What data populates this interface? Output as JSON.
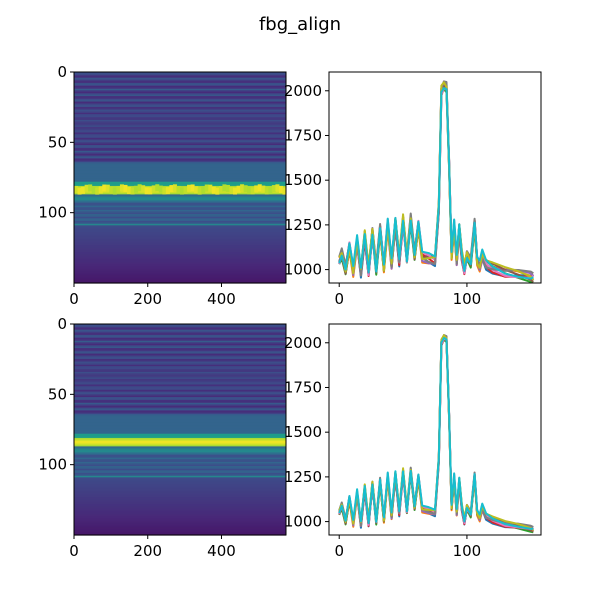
{
  "figure": {
    "title": "fbg_align"
  },
  "chart_data": [
    {
      "type": "heatmap",
      "panel": "top-left",
      "colormap": "viridis",
      "rows": 150,
      "cols": 575,
      "x_ticks": [
        0,
        200,
        400
      ],
      "y_ticks": [
        0,
        50,
        100
      ],
      "xlim": [
        0,
        575
      ],
      "ylim": [
        150,
        0
      ],
      "bright_band_rows": [
        81,
        86
      ]
    },
    {
      "type": "line",
      "panel": "top-right",
      "x_ticks": [
        0,
        100
      ],
      "y_ticks": [
        1000,
        1250,
        1500,
        1750,
        2000
      ],
      "xlim": [
        -8,
        158
      ],
      "ylim": [
        925,
        2105
      ],
      "profile": {
        "x": [
          0,
          2,
          5,
          8,
          11,
          14,
          17,
          20,
          23,
          26,
          29,
          32,
          35,
          38,
          41,
          44,
          47,
          50,
          53,
          56,
          59,
          62,
          65,
          70,
          75,
          78,
          80,
          82,
          84,
          86,
          88,
          90,
          92,
          94,
          96,
          98,
          100,
          103,
          106,
          108,
          110,
          112,
          115,
          120,
          130,
          140,
          150,
          152
        ],
        "y": [
          1050,
          1090,
          1000,
          1130,
          990,
          1160,
          985,
          1190,
          990,
          1210,
          1000,
          1230,
          1010,
          1255,
          1030,
          1265,
          1050,
          1280,
          1060,
          1285,
          1080,
          1250,
          1070,
          1060,
          1050,
          1350,
          2000,
          2030,
          2020,
          1600,
          1080,
          1250,
          1050,
          1230,
          1080,
          1000,
          1080,
          1040,
          1260,
          1050,
          1020,
          1080,
          1030,
          1010,
          985,
          975,
          960,
          955
        ]
      },
      "series_colors": [
        "#1f77b4",
        "#ff7f0e",
        "#2ca02c",
        "#d62728",
        "#9467bd",
        "#8c564b",
        "#e377c2",
        "#7f7f7f",
        "#bcbd22",
        "#17becf"
      ]
    },
    {
      "type": "heatmap",
      "panel": "bottom-left",
      "colormap": "viridis",
      "rows": 150,
      "cols": 575,
      "x_ticks": [
        0,
        200,
        400
      ],
      "y_ticks": [
        0,
        50,
        100
      ],
      "xlim": [
        0,
        575
      ],
      "ylim": [
        150,
        0
      ],
      "bright_band_rows": [
        81,
        86
      ]
    },
    {
      "type": "line",
      "panel": "bottom-right",
      "x_ticks": [
        0,
        100
      ],
      "y_ticks": [
        1000,
        1250,
        1500,
        1750,
        2000
      ],
      "xlim": [
        -8,
        158
      ],
      "ylim": [
        925,
        2105
      ],
      "profile": {
        "x": [
          0,
          2,
          5,
          8,
          11,
          14,
          17,
          20,
          23,
          26,
          29,
          32,
          35,
          38,
          41,
          44,
          47,
          50,
          53,
          56,
          59,
          62,
          65,
          70,
          75,
          78,
          80,
          82,
          84,
          86,
          88,
          90,
          92,
          94,
          96,
          98,
          100,
          103,
          106,
          108,
          110,
          112,
          115,
          120,
          130,
          140,
          150,
          152
        ],
        "y": [
          1050,
          1090,
          1000,
          1130,
          990,
          1160,
          985,
          1190,
          990,
          1210,
          1000,
          1230,
          1010,
          1255,
          1030,
          1265,
          1050,
          1280,
          1060,
          1285,
          1080,
          1250,
          1070,
          1060,
          1050,
          1350,
          2000,
          2030,
          2020,
          1600,
          1080,
          1250,
          1050,
          1230,
          1080,
          1000,
          1080,
          1040,
          1260,
          1050,
          1020,
          1080,
          1030,
          1010,
          985,
          975,
          960,
          955
        ]
      },
      "series_colors": [
        "#1f77b4",
        "#ff7f0e",
        "#2ca02c",
        "#d62728",
        "#9467bd",
        "#8c564b",
        "#e377c2",
        "#7f7f7f",
        "#bcbd22",
        "#17becf"
      ]
    }
  ]
}
